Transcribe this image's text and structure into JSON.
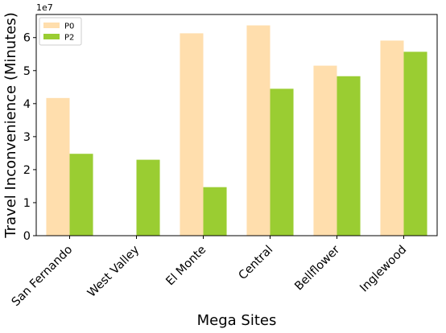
{
  "chart_data": {
    "type": "bar",
    "xlabel": "Mega Sites",
    "ylabel": "Travel Inconvenience (Minutes)",
    "y_multiplier_label": "1e7",
    "scale": 10000000,
    "ylim": [
      0,
      67000000
    ],
    "yticks": [
      0,
      1,
      2,
      3,
      4,
      5,
      6
    ],
    "grid": false,
    "legend_position": "top-left",
    "categories": [
      "San Fernando",
      "West Valley",
      "El Monte",
      "Central",
      "Bellflower",
      "Inglewood"
    ],
    "series": [
      {
        "name": "P0",
        "color": "#ffdead",
        "values": [
          41700000,
          0,
          61300000,
          63700000,
          51500000,
          59100000
        ]
      },
      {
        "name": "P2",
        "color": "#9acd32",
        "values": [
          24800000,
          23000000,
          14700000,
          44500000,
          48300000,
          55700000
        ]
      }
    ]
  }
}
